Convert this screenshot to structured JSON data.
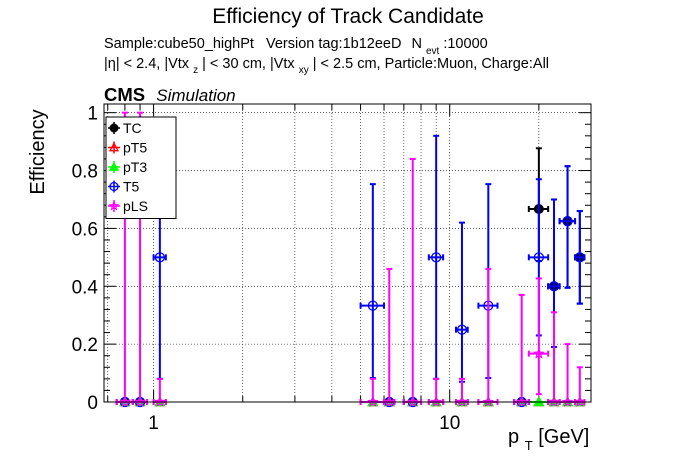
{
  "chart_data": {
    "type": "scatter",
    "title": "Efficiency of Track Candidate",
    "info_lines": {
      "line1": {
        "sample": "Sample:cube50_highPt",
        "version": "Version tag:1b12eeD",
        "nevt_N": "N",
        "nevt_sub": "evt",
        "nevt_val": ":10000"
      },
      "line2": {
        "eta": "|η| < 2.4, |Vtx",
        "z_sub": "z",
        "mid": "| < 30 cm, |Vtx",
        "xy_sub": "xy",
        "tail": "| < 2.5 cm, Particle:Muon, Charge:All"
      }
    },
    "cms_label": "CMS",
    "simulation_label": "Simulation",
    "ylabel": "Efficiency",
    "xlabel_main": "p",
    "xlabel_sub": "T",
    "xlabel_unit": " [GeV]",
    "x_scale": "log",
    "xlim": [
      0.68,
      30
    ],
    "ylim": [
      0,
      1.03
    ],
    "x_tick_labels": [
      {
        "value": 1,
        "label": "1"
      },
      {
        "value": 10,
        "label": "10"
      }
    ],
    "y_ticks": [
      0,
      0.2,
      0.4,
      0.6,
      0.8,
      1
    ],
    "y_tick_labels": [
      "0",
      "0.2",
      "0.4",
      "0.6",
      "0.8",
      "1"
    ],
    "grid": true,
    "legend_position": "top-left",
    "series": [
      {
        "name": "TC",
        "color": "#000000",
        "marker": "filled-circle",
        "points": [
          {
            "x": 0.8,
            "xerr": [
              0.05,
              0.05
            ],
            "y": 0,
            "yerr": [
              0,
              0
            ]
          },
          {
            "x": 0.9,
            "xerr": [
              0.05,
              0.05
            ],
            "y": 0,
            "yerr": [
              0,
              0
            ]
          },
          {
            "x": 6.25,
            "xerr": [
              0.25,
              0.25
            ],
            "y": 0,
            "yerr": [
              0,
              0
            ]
          },
          {
            "x": 7.5,
            "xerr": [
              0.5,
              0.5
            ],
            "y": 0,
            "yerr": [
              0,
              0
            ]
          },
          {
            "x": 17.5,
            "xerr": [
              1.0,
              1.0
            ],
            "y": 0,
            "yerr": [
              0,
              0
            ]
          },
          {
            "x": 20,
            "xerr": [
              1.5,
              1.5
            ],
            "y": 0.667,
            "yerr": [
              0.18,
              0.21
            ]
          },
          {
            "x": 22.5,
            "xerr": [
              1.0,
              1.0
            ],
            "y": 0.4,
            "yerr": [
              0.21,
              0.3
            ]
          },
          {
            "x": 25,
            "xerr": [
              1.5,
              1.5
            ],
            "y": 0.625,
            "yerr": [
              0.23,
              0.19
            ]
          },
          {
            "x": 27.5,
            "xerr": [
              1.0,
              1.0
            ],
            "y": 0.5,
            "yerr": [
              0.16,
              0.16
            ]
          }
        ]
      },
      {
        "name": "pT5",
        "color": "#ff0000",
        "marker": "open-triangle",
        "points": [
          {
            "x": 0.8,
            "xerr": [
              0.05,
              0.05
            ],
            "y": 0,
            "yerr": [
              0,
              0
            ]
          },
          {
            "x": 0.9,
            "xerr": [
              0.05,
              0.05
            ],
            "y": 0,
            "yerr": [
              0,
              0
            ]
          },
          {
            "x": 1.05,
            "xerr": [
              0.05,
              0.05
            ],
            "y": 0,
            "yerr": [
              0,
              0
            ]
          },
          {
            "x": 5.5,
            "xerr": [
              0.5,
              0.5
            ],
            "y": 0,
            "yerr": [
              0,
              0
            ]
          },
          {
            "x": 6.25,
            "xerr": [
              0.25,
              0.25
            ],
            "y": 0,
            "yerr": [
              0,
              0
            ]
          },
          {
            "x": 7.5,
            "xerr": [
              0.5,
              0.5
            ],
            "y": 0,
            "yerr": [
              0,
              0
            ]
          },
          {
            "x": 9,
            "xerr": [
              0.5,
              0.5
            ],
            "y": 0,
            "yerr": [
              0,
              0
            ]
          },
          {
            "x": 11,
            "xerr": [
              0.5,
              0.5
            ],
            "y": 0,
            "yerr": [
              0,
              0
            ]
          },
          {
            "x": 13.5,
            "xerr": [
              1.0,
              1.0
            ],
            "y": 0,
            "yerr": [
              0,
              0
            ]
          },
          {
            "x": 17.5,
            "xerr": [
              1.0,
              1.0
            ],
            "y": 0,
            "yerr": [
              0,
              0
            ]
          },
          {
            "x": 20,
            "xerr": [
              1.5,
              1.5
            ],
            "y": 0,
            "yerr": [
              0,
              0
            ]
          },
          {
            "x": 22.5,
            "xerr": [
              1.0,
              1.0
            ],
            "y": 0,
            "yerr": [
              0,
              0
            ]
          },
          {
            "x": 25,
            "xerr": [
              1.5,
              1.5
            ],
            "y": 0,
            "yerr": [
              0,
              0
            ]
          },
          {
            "x": 27.5,
            "xerr": [
              1.0,
              1.0
            ],
            "y": 0,
            "yerr": [
              0,
              0
            ]
          }
        ]
      },
      {
        "name": "pT3",
        "color": "#00ff00",
        "marker": "filled-triangle",
        "points": [
          {
            "x": 0.8,
            "xerr": [
              0.05,
              0.05
            ],
            "y": 0,
            "yerr": [
              0,
              0
            ]
          },
          {
            "x": 0.9,
            "xerr": [
              0.05,
              0.05
            ],
            "y": 0,
            "yerr": [
              0,
              0
            ]
          },
          {
            "x": 1.05,
            "xerr": [
              0.05,
              0.05
            ],
            "y": 0,
            "yerr": [
              0,
              0
            ]
          },
          {
            "x": 5.5,
            "xerr": [
              0.5,
              0.5
            ],
            "y": 0,
            "yerr": [
              0,
              0
            ]
          },
          {
            "x": 6.25,
            "xerr": [
              0.25,
              0.25
            ],
            "y": 0,
            "yerr": [
              0,
              0
            ]
          },
          {
            "x": 7.5,
            "xerr": [
              0.5,
              0.5
            ],
            "y": 0,
            "yerr": [
              0,
              0
            ]
          },
          {
            "x": 9,
            "xerr": [
              0.5,
              0.5
            ],
            "y": 0,
            "yerr": [
              0,
              0
            ]
          },
          {
            "x": 11,
            "xerr": [
              0.5,
              0.5
            ],
            "y": 0,
            "yerr": [
              0,
              0
            ]
          },
          {
            "x": 13.5,
            "xerr": [
              1.0,
              1.0
            ],
            "y": 0,
            "yerr": [
              0,
              0
            ]
          },
          {
            "x": 17.5,
            "xerr": [
              1.0,
              1.0
            ],
            "y": 0,
            "yerr": [
              0,
              0
            ]
          },
          {
            "x": 20,
            "xerr": [
              1.5,
              1.5
            ],
            "y": 0,
            "yerr": [
              0,
              0
            ]
          },
          {
            "x": 22.5,
            "xerr": [
              1.0,
              1.0
            ],
            "y": 0,
            "yerr": [
              0,
              0
            ]
          },
          {
            "x": 25,
            "xerr": [
              1.5,
              1.5
            ],
            "y": 0,
            "yerr": [
              0,
              0
            ]
          },
          {
            "x": 27.5,
            "xerr": [
              1.0,
              1.0
            ],
            "y": 0,
            "yerr": [
              0,
              0
            ]
          }
        ]
      },
      {
        "name": "T5",
        "color": "#0000ff",
        "marker": "open-circle",
        "points": [
          {
            "x": 0.8,
            "xerr": [
              0.05,
              0.05
            ],
            "y": 0,
            "yerr": [
              0,
              0
            ]
          },
          {
            "x": 0.9,
            "xerr": [
              0.05,
              0.05
            ],
            "y": 0,
            "yerr": [
              0,
              0
            ]
          },
          {
            "x": 1.05,
            "xerr": [
              0.05,
              0.05
            ],
            "y": 0.5,
            "yerr": [
              0.42,
              0.42
            ]
          },
          {
            "x": 5.5,
            "xerr": [
              0.5,
              0.5
            ],
            "y": 0.333,
            "yerr": [
              0.25,
              0.42
            ]
          },
          {
            "x": 6.25,
            "xerr": [
              0.25,
              0.25
            ],
            "y": 0,
            "yerr": [
              0,
              0
            ]
          },
          {
            "x": 7.5,
            "xerr": [
              0.5,
              0.5
            ],
            "y": 0,
            "yerr": [
              0,
              0
            ]
          },
          {
            "x": 9,
            "xerr": [
              0.5,
              0.5
            ],
            "y": 0.5,
            "yerr": [
              0.42,
              0.42
            ]
          },
          {
            "x": 11,
            "xerr": [
              0.5,
              0.5
            ],
            "y": 0.25,
            "yerr": [
              0.18,
              0.37
            ]
          },
          {
            "x": 13.5,
            "xerr": [
              1.0,
              1.0
            ],
            "y": 0.333,
            "yerr": [
              0.25,
              0.42
            ]
          },
          {
            "x": 17.5,
            "xerr": [
              1.0,
              1.0
            ],
            "y": 0,
            "yerr": [
              0,
              0
            ]
          },
          {
            "x": 20,
            "xerr": [
              1.5,
              1.5
            ],
            "y": 0.5,
            "yerr": [
              0.27,
              0.27
            ]
          },
          {
            "x": 22.5,
            "xerr": [
              1.0,
              1.0
            ],
            "y": 0.4,
            "yerr": [
              0.21,
              0.3
            ]
          },
          {
            "x": 25,
            "xerr": [
              1.5,
              1.5
            ],
            "y": 0.625,
            "yerr": [
              0.23,
              0.19
            ]
          },
          {
            "x": 27.5,
            "xerr": [
              1.0,
              1.0
            ],
            "y": 0.5,
            "yerr": [
              0.16,
              0.16
            ]
          }
        ]
      },
      {
        "name": "pLS",
        "color": "#ff00ff",
        "marker": "star",
        "points": [
          {
            "x": 0.8,
            "xerr": [
              0.05,
              0.05
            ],
            "y": 0,
            "yerr": [
              0,
              1.0
            ]
          },
          {
            "x": 0.9,
            "xerr": [
              0.05,
              0.05
            ],
            "y": 0,
            "yerr": [
              0,
              1.0
            ]
          },
          {
            "x": 1.05,
            "xerr": [
              0.05,
              0.05
            ],
            "y": 0,
            "yerr": [
              0,
              0.08
            ]
          },
          {
            "x": 5.5,
            "xerr": [
              0.5,
              0.5
            ],
            "y": 0,
            "yerr": [
              0,
              0.08
            ]
          },
          {
            "x": 6.25,
            "xerr": [
              0.25,
              0.25
            ],
            "y": 0,
            "yerr": [
              0,
              0.46
            ]
          },
          {
            "x": 7.5,
            "xerr": [
              0.5,
              0.5
            ],
            "y": 0,
            "yerr": [
              0,
              0.84
            ]
          },
          {
            "x": 9,
            "xerr": [
              0.5,
              0.5
            ],
            "y": 0,
            "yerr": [
              0,
              0.08
            ]
          },
          {
            "x": 11,
            "xerr": [
              0.5,
              0.5
            ],
            "y": 0,
            "yerr": [
              0,
              0.08
            ]
          },
          {
            "x": 13.5,
            "xerr": [
              1.0,
              1.0
            ],
            "y": 0,
            "yerr": [
              0,
              0.46
            ]
          },
          {
            "x": 17.5,
            "xerr": [
              1.0,
              1.0
            ],
            "y": 0,
            "yerr": [
              0,
              0.37
            ]
          },
          {
            "x": 20,
            "xerr": [
              1.5,
              1.5
            ],
            "y": 0.167,
            "yerr": [
              0.14,
              0.26
            ]
          },
          {
            "x": 22.5,
            "xerr": [
              1.0,
              1.0
            ],
            "y": 0,
            "yerr": [
              0,
              0.31
            ]
          },
          {
            "x": 25,
            "xerr": [
              1.5,
              1.5
            ],
            "y": 0,
            "yerr": [
              0,
              0.2
            ]
          },
          {
            "x": 27.5,
            "xerr": [
              1.0,
              1.0
            ],
            "y": 0,
            "yerr": [
              0,
              0.12
            ]
          }
        ]
      }
    ]
  }
}
